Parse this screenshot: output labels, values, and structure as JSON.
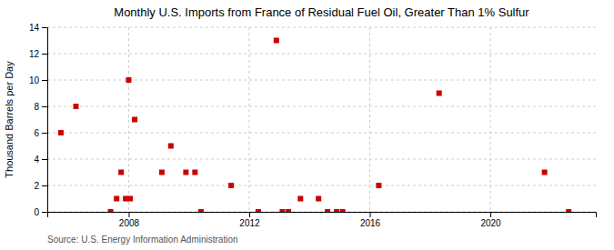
{
  "chart_data": {
    "type": "scatter",
    "title": "Monthly U.S. Imports from France of Residual Fuel Oil, Greater Than 1% Sulfur",
    "ylabel": "Thousand Barrels per Day",
    "source": "Source: U.S. Energy Information Administration",
    "x": [
      2005.75,
      2006.25,
      2007.4,
      2007.6,
      2007.75,
      2007.9,
      2008.05,
      2008.0,
      2008.2,
      2009.1,
      2009.4,
      2009.9,
      2010.2,
      2010.4,
      2011.4,
      2012.3,
      2012.9,
      2013.1,
      2013.3,
      2013.7,
      2014.3,
      2014.6,
      2014.9,
      2015.1,
      2016.3,
      2018.3,
      2021.8,
      2022.6
    ],
    "values": [
      6,
      8,
      0,
      1,
      3,
      1,
      1,
      10,
      7,
      3,
      5,
      3,
      3,
      0,
      2,
      0,
      13,
      0,
      0,
      1,
      1,
      0,
      0,
      0,
      2,
      9,
      3,
      0
    ],
    "color": "#cc0000",
    "marker": "square",
    "xlim": [
      2005.3,
      2023.5
    ],
    "xticks": [
      2008,
      2012,
      2016,
      2020
    ],
    "ylim": [
      0,
      14
    ],
    "yticks": [
      0,
      2,
      4,
      6,
      8,
      10,
      12,
      14
    ],
    "grid": true
  }
}
